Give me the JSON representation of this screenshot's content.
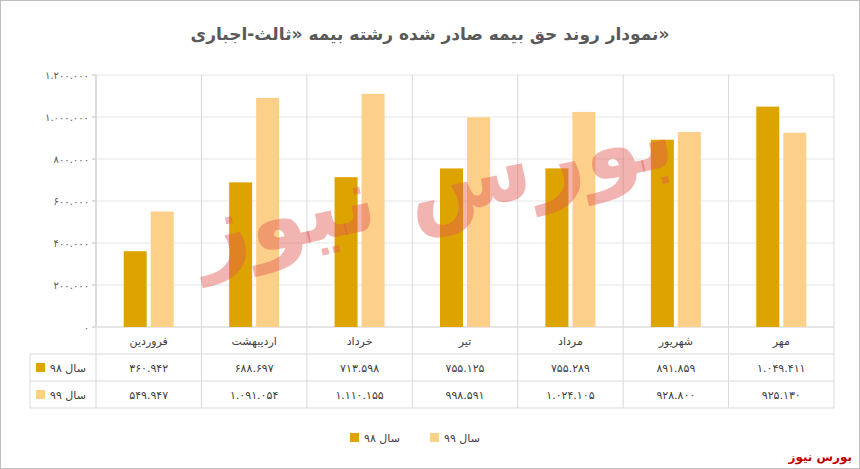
{
  "chart_data": {
    "type": "bar",
    "title": "نمودار روند حق بیمه صادر شده رشته بیمه «ثالث-اجباری»",
    "categories": [
      "فروردین",
      "اردیبهشت",
      "خرداد",
      "تیر",
      "مرداد",
      "شهریور",
      "مهر"
    ],
    "series": [
      {
        "name": "سال ۹۸",
        "color": "#dda400",
        "values": [
          360942,
          688697,
          713598,
          755125,
          755289,
          891859,
          1049411
        ],
        "value_labels": [
          "۳۶۰.۹۴۲",
          "۶۸۸.۶۹۷",
          "۷۱۳.۵۹۸",
          "۷۵۵.۱۲۵",
          "۷۵۵.۲۸۹",
          "۸۹۱.۸۵۹",
          "۱.۰۴۹.۴۱۱"
        ]
      },
      {
        "name": "سال ۹۹",
        "color": "#fdd08a",
        "values": [
          549947,
          1091054,
          1110155,
          998591,
          1024105,
          928800,
          925130
        ],
        "value_labels": [
          "۵۴۹.۹۴۷",
          "۱.۰۹۱.۰۵۴",
          "۱.۱۱۰.۱۵۵",
          "۹۹۸.۵۹۱",
          "۱.۰۲۴.۱۰۵",
          "۹۲۸.۸۰۰",
          "۹۲۵.۱۳۰"
        ]
      }
    ],
    "ylim": [
      0,
      1200000
    ],
    "yticks": [
      {
        "value": 0,
        "label": "۰"
      },
      {
        "value": 200000,
        "label": "۲۰۰.۰۰۰"
      },
      {
        "value": 400000,
        "label": "۴۰۰.۰۰۰"
      },
      {
        "value": 600000,
        "label": "۶۰۰.۰۰۰"
      },
      {
        "value": 800000,
        "label": "۸۰۰.۰۰۰"
      },
      {
        "value": 1000000,
        "label": "۱.۰۰۰.۰۰۰"
      },
      {
        "value": 1200000,
        "label": "۱.۲۰۰.۰۰۰"
      }
    ],
    "grid": true,
    "legend": "bottom",
    "watermark": "بورس نیوز",
    "source": "بورس نیوز"
  }
}
